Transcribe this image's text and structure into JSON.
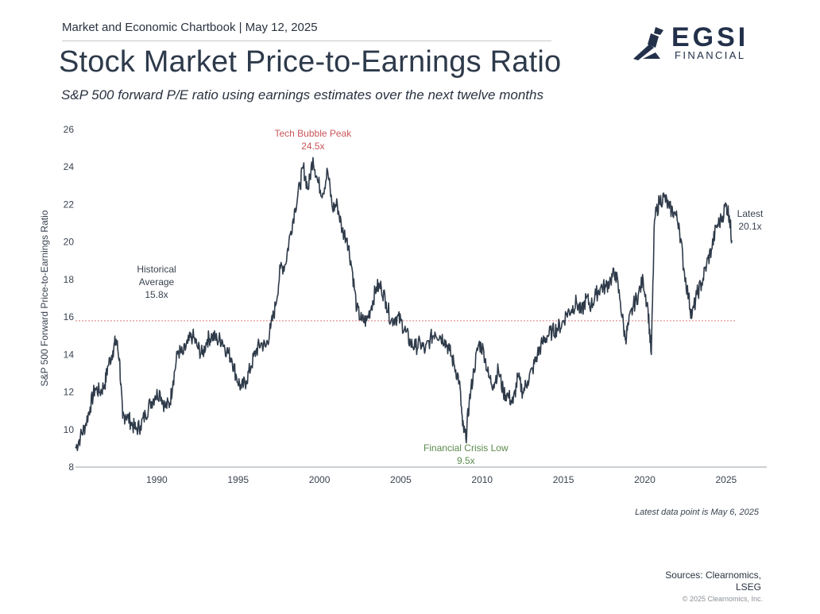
{
  "header": {
    "kicker": "Market and Economic Chartbook | May 12, 2025",
    "title": "Stock Market Price-to-Earnings Ratio",
    "subtitle": "S&P 500 forward P/E ratio using earnings estimates over the next twelve months"
  },
  "logo": {
    "word": "EGSI",
    "sub": "FINANCIAL",
    "icon": "hand-torch-icon"
  },
  "footer": {
    "note": "Latest data point is May 6, 2025",
    "sources_line1": "Sources: Clearnomics,",
    "sources_line2": "LSEG",
    "copyright": "© 2025 Clearnomics, Inc."
  },
  "colors": {
    "line": "#2f3b4a",
    "average": "#e07b7b",
    "peak": "#c9565a",
    "low": "#5b8a4e"
  },
  "chart_data": {
    "type": "line",
    "title": "Stock Market Price-to-Earnings Ratio",
    "ylabel": "S&P 500 Forward Price-to-Earnings Ratio",
    "xlabel": "",
    "xlim": [
      1985.0,
      2027.5
    ],
    "ylim": [
      8,
      26
    ],
    "x_ticks": [
      1990,
      1995,
      2000,
      2005,
      2010,
      2015,
      2020,
      2025
    ],
    "y_ticks": [
      8,
      10,
      12,
      14,
      16,
      18,
      20,
      22,
      24,
      26
    ],
    "grid": false,
    "historical_average": 15.8,
    "annotations": [
      {
        "text_lines": [
          "Tech Bubble Peak",
          "24.5x"
        ],
        "x": 1999.6,
        "y": 24.5,
        "kind": "peak"
      },
      {
        "text_lines": [
          "Financial Crisis Low",
          "9.5x"
        ],
        "x": 2009.0,
        "y": 9.5,
        "kind": "low"
      },
      {
        "text_lines": [
          "Historical",
          "Average",
          "15.8x"
        ],
        "x": 1990.0,
        "y": 15.8,
        "kind": "average"
      },
      {
        "text_lines": [
          "Latest",
          "20.1x"
        ],
        "x": 2025.35,
        "y": 20.1,
        "kind": "latest"
      }
    ],
    "series": [
      {
        "x": [
          1985.0,
          1985.3,
          1985.6,
          1985.9,
          1986.2,
          1986.5,
          1986.8,
          1987.0,
          1987.3,
          1987.5,
          1987.7,
          1987.9,
          1988.1,
          1988.4,
          1988.7,
          1989.0,
          1989.3,
          1989.6,
          1989.9,
          1990.2,
          1990.5,
          1990.8,
          1991.0,
          1991.3,
          1991.6,
          1991.9,
          1992.2,
          1992.5,
          1992.8,
          1993.1,
          1993.4,
          1993.7,
          1994.0,
          1994.3,
          1994.6,
          1994.9,
          1995.2,
          1995.5,
          1995.8,
          1996.1,
          1996.4,
          1996.7,
          1997.0,
          1997.3,
          1997.6,
          1997.9,
          1998.2,
          1998.5,
          1998.8,
          1999.0,
          1999.3,
          1999.6,
          1999.9,
          2000.2,
          2000.5,
          2000.8,
          2001.1,
          2001.4,
          2001.7,
          2002.0,
          2002.3,
          2002.6,
          2002.9,
          2003.2,
          2003.5,
          2003.8,
          2004.1,
          2004.4,
          2004.7,
          2005.0,
          2005.3,
          2005.6,
          2005.9,
          2006.2,
          2006.5,
          2006.8,
          2007.1,
          2007.4,
          2007.7,
          2008.0,
          2008.3,
          2008.6,
          2008.8,
          2009.0,
          2009.2,
          2009.5,
          2009.8,
          2010.1,
          2010.4,
          2010.7,
          2011.0,
          2011.3,
          2011.6,
          2011.9,
          2012.2,
          2012.5,
          2012.8,
          2013.1,
          2013.4,
          2013.7,
          2014.0,
          2014.3,
          2014.6,
          2014.9,
          2015.2,
          2015.5,
          2015.8,
          2016.1,
          2016.4,
          2016.7,
          2017.0,
          2017.3,
          2017.6,
          2017.9,
          2018.2,
          2018.5,
          2018.8,
          2019.0,
          2019.3,
          2019.6,
          2019.9,
          2020.2,
          2020.4,
          2020.6,
          2020.9,
          2021.2,
          2021.5,
          2021.8,
          2022.1,
          2022.4,
          2022.7,
          2022.9,
          2023.2,
          2023.5,
          2023.8,
          2024.1,
          2024.4,
          2024.7,
          2025.0,
          2025.2,
          2025.35
        ],
        "y": [
          9.0,
          9.6,
          10.2,
          11.2,
          12.2,
          12.0,
          12.4,
          13.4,
          14.2,
          14.8,
          13.8,
          10.6,
          10.8,
          10.4,
          10.0,
          10.2,
          10.8,
          11.4,
          11.8,
          12.0,
          11.2,
          11.4,
          12.6,
          14.2,
          14.0,
          14.6,
          15.0,
          14.4,
          14.0,
          14.8,
          15.0,
          14.8,
          14.8,
          14.2,
          13.8,
          12.8,
          12.2,
          12.6,
          13.4,
          14.2,
          14.6,
          14.4,
          15.4,
          16.6,
          18.6,
          18.8,
          20.4,
          21.8,
          23.0,
          24.0,
          22.8,
          24.5,
          23.2,
          22.6,
          23.8,
          21.8,
          22.0,
          20.6,
          20.2,
          18.6,
          16.4,
          15.8,
          15.8,
          16.6,
          17.6,
          17.6,
          16.8,
          15.8,
          16.0,
          15.8,
          15.2,
          14.6,
          14.4,
          14.6,
          14.2,
          14.8,
          15.2,
          15.0,
          14.8,
          14.2,
          13.4,
          12.6,
          10.2,
          9.5,
          11.4,
          13.2,
          14.6,
          14.2,
          12.8,
          12.4,
          13.2,
          12.0,
          11.8,
          11.4,
          12.8,
          12.0,
          12.6,
          13.2,
          14.0,
          14.6,
          15.0,
          15.2,
          15.4,
          15.6,
          16.2,
          16.4,
          16.8,
          16.2,
          17.0,
          16.6,
          17.2,
          17.6,
          17.6,
          18.0,
          18.4,
          16.8,
          14.8,
          15.6,
          16.6,
          17.2,
          18.0,
          16.4,
          14.0,
          21.2,
          22.2,
          22.4,
          21.8,
          21.6,
          21.0,
          18.6,
          17.0,
          16.0,
          17.2,
          17.8,
          18.8,
          19.6,
          20.8,
          21.2,
          22.0,
          21.4,
          20.1
        ]
      }
    ]
  }
}
